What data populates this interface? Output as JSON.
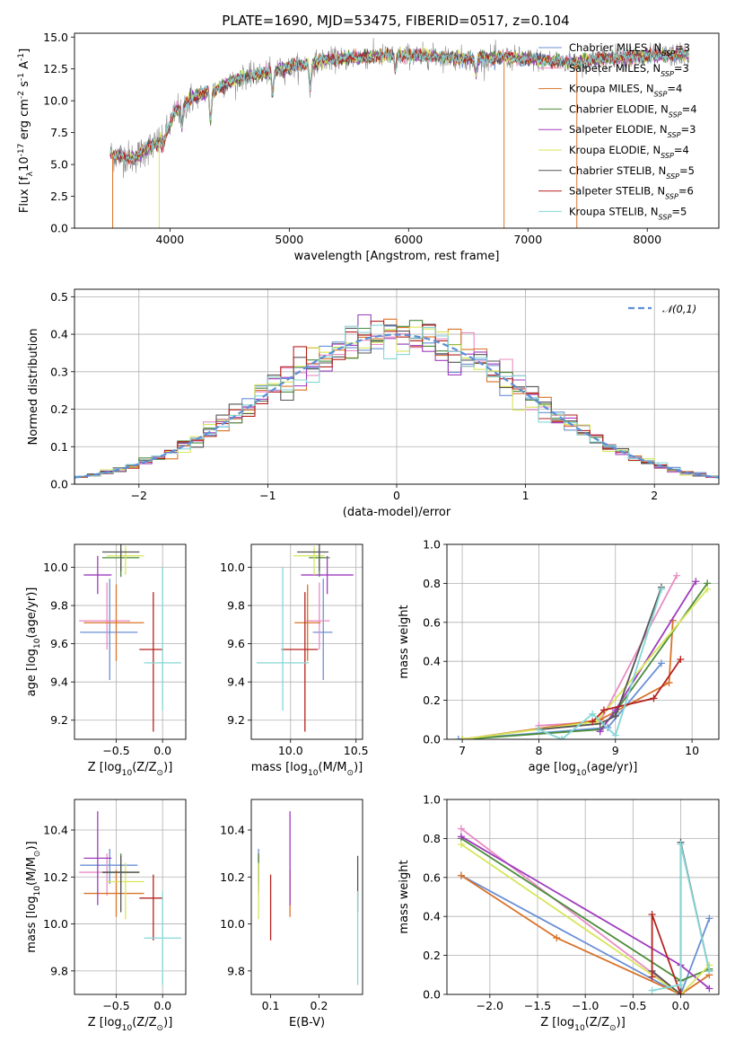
{
  "figure_title": "PLATE=1690, MJD=53475, FIBERID=0517, z=0.104",
  "colors": {
    "Chabrier MILES": "#6a8fd6",
    "Salpeter MILES": "#e88cc4",
    "Kroupa MILES": "#d9732a",
    "Chabrier ELODIE": "#4a8c3a",
    "Salpeter ELODIE": "#a03cbf",
    "Kroupa ELODIE": "#d8e65a",
    "Chabrier STELIB": "#555555",
    "Salpeter STELIB": "#b5231f",
    "Kroupa STELIB": "#86d6d6",
    "data": "#888888",
    "normal_curve": "#5b8fd6"
  },
  "chart_data": [
    {
      "id": "spectrum",
      "type": "line",
      "xlabel": "wavelength [Angstrom, rest frame]",
      "ylabel": "Flux [f$_\\lambda$10$^{-17}$ erg cm$^{-2}$ s$^{-1}$ A$^{-1}$]",
      "xlim": [
        3200,
        8600
      ],
      "ylim": [
        0,
        15.3
      ],
      "xticks": [
        4000,
        5000,
        6000,
        7000,
        8000
      ],
      "yticks": [
        0.0,
        2.5,
        5.0,
        7.5,
        10.0,
        12.5,
        15.0
      ],
      "grid": false,
      "legend_position": "top-right",
      "legend": [
        {
          "label": "Chabrier MILES, N",
          "sub": "SSP",
          "suffix": "=3"
        },
        {
          "label": "Salpeter MILES, N",
          "sub": "SSP",
          "suffix": "=3"
        },
        {
          "label": "Kroupa MILES, N",
          "sub": "SSP",
          "suffix": "=4"
        },
        {
          "label": "Chabrier ELODIE, N",
          "sub": "SSP",
          "suffix": "=4"
        },
        {
          "label": "Salpeter ELODIE, N",
          "sub": "SSP",
          "suffix": "=3"
        },
        {
          "label": "Kroupa ELODIE, N",
          "sub": "SSP",
          "suffix": "=4"
        },
        {
          "label": "Chabrier STELIB, N",
          "sub": "SSP",
          "suffix": "=5"
        },
        {
          "label": "Salpeter STELIB, N",
          "sub": "SSP",
          "suffix": "=6"
        },
        {
          "label": "Kroupa STELIB, N",
          "sub": "SSP",
          "suffix": "=5"
        }
      ],
      "continuum": [
        [
          3500,
          5.8
        ],
        [
          3700,
          5.5
        ],
        [
          3800,
          6.2
        ],
        [
          3950,
          7.0
        ],
        [
          4050,
          9.2
        ],
        [
          4200,
          10.3
        ],
        [
          4400,
          11.0
        ],
        [
          4600,
          11.8
        ],
        [
          4800,
          12.2
        ],
        [
          5000,
          12.6
        ],
        [
          5300,
          13.2
        ],
        [
          5600,
          13.4
        ],
        [
          5900,
          13.6
        ],
        [
          6200,
          13.5
        ],
        [
          6500,
          13.3
        ],
        [
          6800,
          13.4
        ],
        [
          7100,
          13.2
        ],
        [
          7400,
          13.0
        ],
        [
          7700,
          13.4
        ],
        [
          8000,
          13.5
        ],
        [
          8300,
          13.6
        ]
      ],
      "absorption_lines": [
        [
          3934,
          6.5
        ],
        [
          4101,
          8.0
        ],
        [
          4340,
          8.5
        ],
        [
          4861,
          10.5
        ],
        [
          5175,
          11.0
        ],
        [
          5890,
          12.5
        ],
        [
          6563,
          12.0
        ]
      ]
    },
    {
      "id": "residuals",
      "type": "histogram",
      "xlabel": "(data-model)/error",
      "ylabel": "Normed distribution",
      "xlim": [
        -2.5,
        2.5
      ],
      "ylim": [
        0,
        0.52
      ],
      "xticks": [
        -2,
        -1,
        0,
        1,
        2
      ],
      "yticks": [
        0.0,
        0.1,
        0.2,
        0.3,
        0.4,
        0.5
      ],
      "grid": true,
      "legend_position": "top-right",
      "legend": [
        {
          "label": "$\\mathcal{N}(0,1)$"
        }
      ],
      "bin_width": 0.1
    },
    {
      "id": "age_vs_Z",
      "type": "scatter",
      "xlabel": "Z [log$_{10}$(Z/Z$_\\odot$)]",
      "ylabel": "age  [log$_{10}$(age/yr)]",
      "xlim": [
        -0.95,
        0.25
      ],
      "ylim": [
        9.1,
        10.12
      ],
      "xticks": [
        -0.5,
        0.0
      ],
      "yticks": [
        9.2,
        9.4,
        9.6,
        9.8,
        10.0
      ],
      "grid": true
    },
    {
      "id": "age_vs_mass",
      "type": "scatter",
      "xlabel": "mass [log$_{10}$(M/M$_\\odot$)]",
      "ylabel": "",
      "xlim": [
        9.7,
        10.55
      ],
      "ylim": [
        9.1,
        10.12
      ],
      "xticks": [
        9.5,
        10.0,
        10.5
      ],
      "yticks": [
        9.2,
        9.4,
        9.6,
        9.8,
        10.0
      ],
      "grid": true
    },
    {
      "id": "weight_vs_age",
      "type": "line",
      "xlabel": "age  [log$_{10}$(age/yr)]",
      "ylabel": "mass weight",
      "xlim": [
        6.8,
        10.35
      ],
      "ylim": [
        0,
        1.0
      ],
      "xticks": [
        7,
        8,
        9,
        10
      ],
      "yticks": [
        0.0,
        0.2,
        0.4,
        0.6,
        0.8,
        1.0
      ],
      "grid": true,
      "series": [
        {
          "model": "Chabrier MILES",
          "x": [
            6.95,
            8.9,
            9.6
          ],
          "y": [
            0.0,
            0.06,
            0.39
          ]
        },
        {
          "model": "Salpeter MILES",
          "x": [
            8.0,
            8.8,
            9.8
          ],
          "y": [
            0.07,
            0.09,
            0.84
          ]
        },
        {
          "model": "Kroupa MILES",
          "x": [
            7.0,
            8.8,
            9.7,
            9.75
          ],
          "y": [
            0.0,
            0.1,
            0.29,
            0.61
          ]
        },
        {
          "model": "Chabrier ELODIE",
          "x": [
            7.0,
            8.8,
            9.0,
            10.2
          ],
          "y": [
            0.0,
            0.05,
            0.14,
            0.8
          ]
        },
        {
          "model": "Salpeter ELODIE",
          "x": [
            8.8,
            9.0,
            10.05
          ],
          "y": [
            0.04,
            0.15,
            0.81
          ]
        },
        {
          "model": "Kroupa ELODIE",
          "x": [
            7.0,
            8.75,
            10.2
          ],
          "y": [
            0.0,
            0.09,
            0.77
          ]
        },
        {
          "model": "Chabrier STELIB",
          "x": [
            8.0,
            8.8,
            9.0,
            9.6
          ],
          "y": [
            0.05,
            0.08,
            0.12,
            0.78
          ]
        },
        {
          "model": "Salpeter STELIB",
          "x": [
            8.7,
            8.85,
            9.5,
            9.85
          ],
          "y": [
            0.09,
            0.15,
            0.21,
            0.41
          ]
        },
        {
          "model": "Kroupa STELIB",
          "x": [
            8.0,
            8.3,
            8.7,
            9.0,
            9.6
          ],
          "y": [
            0.05,
            0.0,
            0.13,
            0.02,
            0.77
          ]
        }
      ]
    },
    {
      "id": "mass_vs_Z",
      "type": "scatter",
      "xlabel": "Z [log$_{10}$(Z/Z$_\\odot$)]",
      "ylabel": "mass [log$_{10}$(M/M$_\\odot$)]",
      "xlim": [
        -0.95,
        0.25
      ],
      "ylim": [
        9.7,
        10.53
      ],
      "xticks": [
        -0.5,
        0.0
      ],
      "yticks": [
        9.8,
        10.0,
        10.2,
        10.4
      ],
      "grid": true
    },
    {
      "id": "mass_vs_EBV",
      "type": "scatter",
      "xlabel": "E(B-V)",
      "ylabel": "",
      "xlim": [
        0.06,
        0.29
      ],
      "ylim": [
        9.7,
        10.53
      ],
      "xticks": [
        0.1,
        0.2
      ],
      "yticks": [
        9.8,
        10.0,
        10.2,
        10.4
      ],
      "grid": false
    },
    {
      "id": "weight_vs_Z",
      "type": "line",
      "xlabel": "Z [log$_{10}$(Z/Z$_\\odot$)]",
      "ylabel": "mass weight",
      "xlim": [
        -2.45,
        0.4
      ],
      "ylim": [
        0,
        1.0
      ],
      "xticks": [
        -2.0,
        -1.5,
        -1.0,
        -0.5,
        0.0
      ],
      "yticks": [
        0.0,
        0.2,
        0.4,
        0.6,
        0.8,
        1.0
      ],
      "grid": true,
      "series": [
        {
          "model": "Chabrier MILES",
          "x": [
            -2.3,
            0.0,
            0.3
          ],
          "y": [
            0.61,
            0.0,
            0.39
          ]
        },
        {
          "model": "Salpeter MILES",
          "x": [
            -2.3,
            0.0
          ],
          "y": [
            0.85,
            0.0
          ]
        },
        {
          "model": "Kroupa MILES",
          "x": [
            -2.3,
            -1.3,
            0.0,
            0.3
          ],
          "y": [
            0.61,
            0.29,
            0.0,
            0.1
          ]
        },
        {
          "model": "Chabrier ELODIE",
          "x": [
            -2.3,
            0.0,
            0.3
          ],
          "y": [
            0.8,
            0.07,
            0.13
          ]
        },
        {
          "model": "Salpeter ELODIE",
          "x": [
            -2.3,
            0.0,
            0.3
          ],
          "y": [
            0.81,
            0.15,
            0.03
          ]
        },
        {
          "model": "Kroupa ELODIE",
          "x": [
            -2.3,
            0.0,
            0.3
          ],
          "y": [
            0.77,
            0.0,
            0.15
          ]
        },
        {
          "model": "Chabrier STELIB",
          "x": [
            -0.3,
            0.0,
            0.0,
            0.3
          ],
          "y": [
            0.12,
            0.0,
            0.78,
            0.12
          ]
        },
        {
          "model": "Salpeter STELIB",
          "x": [
            -0.3,
            -0.3,
            0.0
          ],
          "y": [
            0.09,
            0.41,
            0.0
          ]
        },
        {
          "model": "Kroupa STELIB",
          "x": [
            -0.3,
            0.0,
            0.0,
            0.3
          ],
          "y": [
            0.02,
            0.05,
            0.77,
            0.12
          ]
        }
      ]
    }
  ],
  "ssp_points": [
    {
      "model": "Chabrier MILES",
      "age": 9.66,
      "age_err": [
        0.25,
        0.28
      ],
      "Z": -0.57,
      "Z_err": [
        0.32,
        0.3
      ],
      "mass": 10.25,
      "mass_err": [
        0.08,
        0.07
      ],
      "ebv": 0.075
    },
    {
      "model": "Salpeter MILES",
      "age": 9.72,
      "age_err": [
        0.15,
        0.2
      ],
      "Z": -0.6,
      "Z_err": [
        0.3,
        0.25
      ],
      "mass": 10.22,
      "mass_err": [
        0.1,
        0.08
      ],
      "ebv": 0.075
    },
    {
      "model": "Kroupa MILES",
      "age": 9.71,
      "age_err": [
        0.2,
        0.2
      ],
      "Z": -0.5,
      "Z_err": [
        0.35,
        0.3
      ],
      "mass": 10.13,
      "mass_err": [
        0.1,
        0.1
      ],
      "ebv": 0.14
    },
    {
      "model": "Chabrier ELODIE",
      "age": 10.05,
      "age_err": [
        0.1,
        0.05
      ],
      "Z": -0.45,
      "Z_err": [
        0.2,
        0.2
      ],
      "mass": 10.22,
      "mass_err": [
        0.08,
        0.08
      ],
      "ebv": 0.075
    },
    {
      "model": "Salpeter ELODIE",
      "age": 9.96,
      "age_err": [
        0.1,
        0.1
      ],
      "Z": -0.7,
      "Z_err": [
        0.15,
        0.15
      ],
      "mass": 10.28,
      "mass_err": [
        0.2,
        0.2
      ],
      "ebv": 0.14
    },
    {
      "model": "Kroupa ELODIE",
      "age": 10.06,
      "age_err": [
        0.1,
        0.05
      ],
      "Z": -0.4,
      "Z_err": [
        0.2,
        0.2
      ],
      "mass": 10.18,
      "mass_err": [
        0.16,
        0.08
      ],
      "ebv": 0.075
    },
    {
      "model": "Chabrier STELIB",
      "age": 10.08,
      "age_err": [
        0.1,
        0.05
      ],
      "Z": -0.45,
      "Z_err": [
        0.2,
        0.2
      ],
      "mass": 10.22,
      "mass_err": [
        0.17,
        0.07
      ],
      "ebv": 0.28
    },
    {
      "model": "Salpeter STELIB",
      "age": 9.57,
      "age_err": [
        0.43,
        0.3
      ],
      "Z": -0.1,
      "Z_err": [
        0.15,
        0.1
      ],
      "mass": 10.11,
      "mass_err": [
        0.18,
        0.1
      ],
      "ebv": 0.1
    },
    {
      "model": "Kroupa STELIB",
      "age": 9.5,
      "age_err": [
        0.25,
        0.5
      ],
      "Z": 0.0,
      "Z_err": [
        0.2,
        0.2
      ],
      "mass": 9.94,
      "mass_err": [
        0.2,
        0.2
      ],
      "ebv": 0.28
    }
  ]
}
